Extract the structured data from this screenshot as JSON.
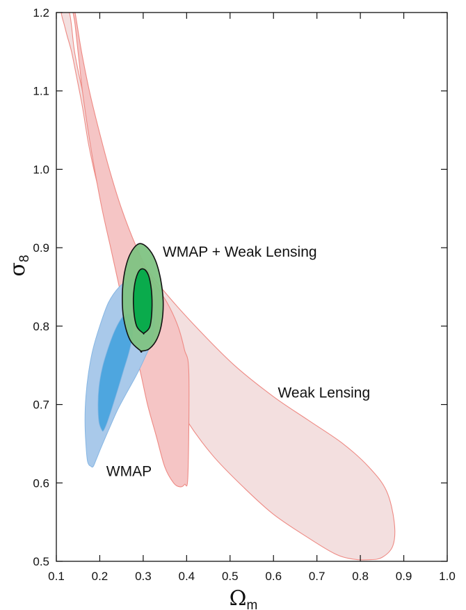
{
  "chart_data": {
    "type": "contour",
    "xlabel": "Ω",
    "xlabel_sub": "m",
    "ylabel": "σ",
    "ylabel_sub": "8",
    "xlim": [
      0.1,
      1.0
    ],
    "ylim": [
      0.5,
      1.2
    ],
    "xticks": [
      0.1,
      0.2,
      0.3,
      0.4,
      0.5,
      0.6,
      0.7,
      0.8,
      0.9,
      1.0
    ],
    "yticks": [
      0.5,
      0.6,
      0.7,
      0.8,
      0.9,
      1.0,
      1.1,
      1.2
    ],
    "xtick_labels": [
      "0.1",
      "0.2",
      "0.3",
      "0.4",
      "0.5",
      "0.6",
      "0.7",
      "0.8",
      "0.9",
      "1.0"
    ],
    "ytick_labels": [
      "0.5",
      "0.6",
      "0.7",
      "0.8",
      "0.9",
      "1.0",
      "1.1",
      "1.2"
    ],
    "grid": false,
    "colors": {
      "weak_lensing_outer": "#f3dfdf",
      "weak_lensing_inner": "#f5c5c5",
      "weak_lensing_edge": "#ee8a84",
      "wmap_outer": "#a9c9ea",
      "wmap_inner": "#4ea6df",
      "wmap_edge": "#86b6e3",
      "combined_outer": "#7fc383",
      "combined_inner": "#0aab4c",
      "combined_edge": "#111111"
    },
    "annotations": [
      {
        "id": "combined",
        "text": "WMAP + Weak Lensing",
        "x": 0.345,
        "y": 0.895
      },
      {
        "id": "weak_lensing",
        "text": "Weak Lensing",
        "x": 0.61,
        "y": 0.715
      },
      {
        "id": "wmap",
        "text": "WMAP",
        "x": 0.215,
        "y": 0.615
      }
    ],
    "series": [
      {
        "name": "Weak Lensing",
        "level": "outer",
        "x": [
          0.13,
          0.142,
          0.16,
          0.18,
          0.205,
          0.235,
          0.275,
          0.34,
          0.42,
          0.51,
          0.6,
          0.68,
          0.76,
          0.82,
          0.86,
          0.878,
          0.875,
          0.85,
          0.82,
          0.78,
          0.74,
          0.68,
          0.6,
          0.53,
          0.46,
          0.4,
          0.35,
          0.31,
          0.275,
          0.245,
          0.22,
          0.195,
          0.175,
          0.16,
          0.146,
          0.135,
          0.125,
          0.118,
          0.113,
          0.113
        ],
        "y": [
          1.2,
          1.15,
          1.1,
          1.05,
          1.0,
          0.95,
          0.9,
          0.85,
          0.8,
          0.75,
          0.71,
          0.68,
          0.65,
          0.62,
          0.59,
          0.55,
          0.52,
          0.505,
          0.502,
          0.503,
          0.51,
          0.53,
          0.56,
          0.595,
          0.635,
          0.68,
          0.73,
          0.78,
          0.83,
          0.88,
          0.93,
          0.98,
          1.03,
          1.08,
          1.12,
          1.15,
          1.17,
          1.185,
          1.195,
          1.2
        ]
      },
      {
        "name": "Weak Lensing",
        "level": "inner",
        "x": [
          0.143,
          0.158,
          0.176,
          0.198,
          0.222,
          0.25,
          0.285,
          0.32,
          0.355,
          0.38,
          0.395,
          0.405,
          0.403,
          0.395,
          0.385,
          0.37,
          0.35,
          0.33,
          0.31,
          0.29,
          0.265,
          0.245,
          0.225,
          0.205,
          0.188,
          0.173,
          0.16,
          0.15,
          0.143,
          0.139,
          0.139
        ],
        "y": [
          1.2,
          1.15,
          1.1,
          1.05,
          1.0,
          0.95,
          0.9,
          0.86,
          0.83,
          0.8,
          0.77,
          0.74,
          0.61,
          0.598,
          0.595,
          0.6,
          0.62,
          0.66,
          0.7,
          0.75,
          0.8,
          0.85,
          0.9,
          0.95,
          1.0,
          1.05,
          1.1,
          1.15,
          1.185,
          1.198,
          1.2
        ]
      },
      {
        "name": "WMAP",
        "level": "outer",
        "x": [
          0.18,
          0.172,
          0.168,
          0.166,
          0.168,
          0.174,
          0.184,
          0.2,
          0.22,
          0.245,
          0.268,
          0.288,
          0.305,
          0.318,
          0.325,
          0.325,
          0.318,
          0.304,
          0.285,
          0.262,
          0.24,
          0.22,
          0.203,
          0.192,
          0.185
        ],
        "y": [
          0.621,
          0.627,
          0.65,
          0.68,
          0.71,
          0.74,
          0.77,
          0.8,
          0.83,
          0.85,
          0.858,
          0.858,
          0.852,
          0.838,
          0.818,
          0.798,
          0.778,
          0.76,
          0.738,
          0.715,
          0.692,
          0.667,
          0.645,
          0.63,
          0.621
        ]
      },
      {
        "name": "WMAP",
        "level": "inner",
        "x": [
          0.205,
          0.198,
          0.196,
          0.198,
          0.205,
          0.218,
          0.235,
          0.253,
          0.268,
          0.276,
          0.275,
          0.267,
          0.255,
          0.242,
          0.229,
          0.217,
          0.209
        ],
        "y": [
          0.667,
          0.678,
          0.7,
          0.722,
          0.745,
          0.77,
          0.795,
          0.812,
          0.815,
          0.803,
          0.786,
          0.766,
          0.744,
          0.72,
          0.697,
          0.677,
          0.667
        ]
      },
      {
        "name": "WMAP + Weak Lensing",
        "level": "outer",
        "x": [
          0.295,
          0.27,
          0.255,
          0.252,
          0.257,
          0.27,
          0.29,
          0.31,
          0.328,
          0.34,
          0.346,
          0.343,
          0.332,
          0.314,
          0.295
        ],
        "y": [
          0.768,
          0.782,
          0.81,
          0.84,
          0.868,
          0.892,
          0.905,
          0.9,
          0.884,
          0.86,
          0.832,
          0.805,
          0.784,
          0.771,
          0.768
        ]
      },
      {
        "name": "WMAP + Weak Lensing",
        "level": "inner",
        "x": [
          0.3,
          0.285,
          0.278,
          0.279,
          0.288,
          0.3,
          0.312,
          0.319,
          0.32,
          0.315,
          0.302
        ],
        "y": [
          0.791,
          0.8,
          0.822,
          0.848,
          0.868,
          0.873,
          0.865,
          0.845,
          0.82,
          0.799,
          0.791
        ]
      }
    ]
  }
}
